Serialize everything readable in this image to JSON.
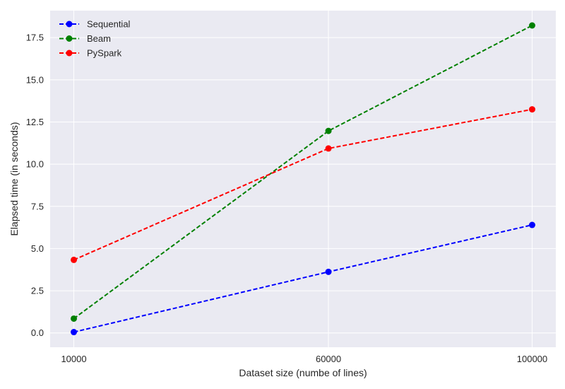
{
  "chart_data": {
    "type": "line",
    "title": "",
    "xlabel": "Dataset size (numbe of lines)",
    "ylabel": "Elapsed time (in seconds)",
    "x": [
      10000,
      60000,
      100000
    ],
    "x_tick_labels": [
      "10000",
      "60000",
      "100000"
    ],
    "y_ticks": [
      0.0,
      2.5,
      5.0,
      7.5,
      10.0,
      12.5,
      15.0,
      17.5
    ],
    "y_tick_labels": [
      "0.0",
      "2.5",
      "5.0",
      "7.5",
      "10.0",
      "12.5",
      "15.0",
      "17.5"
    ],
    "xlim": [
      5350,
      104650
    ],
    "ylim": [
      -0.85,
      19.1
    ],
    "grid": true,
    "background": "#eaeaf2",
    "legend_position": "top-left",
    "line_style": "dashed",
    "marker": "circle",
    "series": [
      {
        "name": "Sequential",
        "color": "#0000ff",
        "values": [
          0.05,
          3.62,
          6.4
        ]
      },
      {
        "name": "Beam",
        "color": "#008000",
        "values": [
          0.85,
          11.97,
          18.22
        ]
      },
      {
        "name": "PySpark",
        "color": "#ff0000",
        "values": [
          4.33,
          10.93,
          13.25
        ]
      }
    ]
  }
}
